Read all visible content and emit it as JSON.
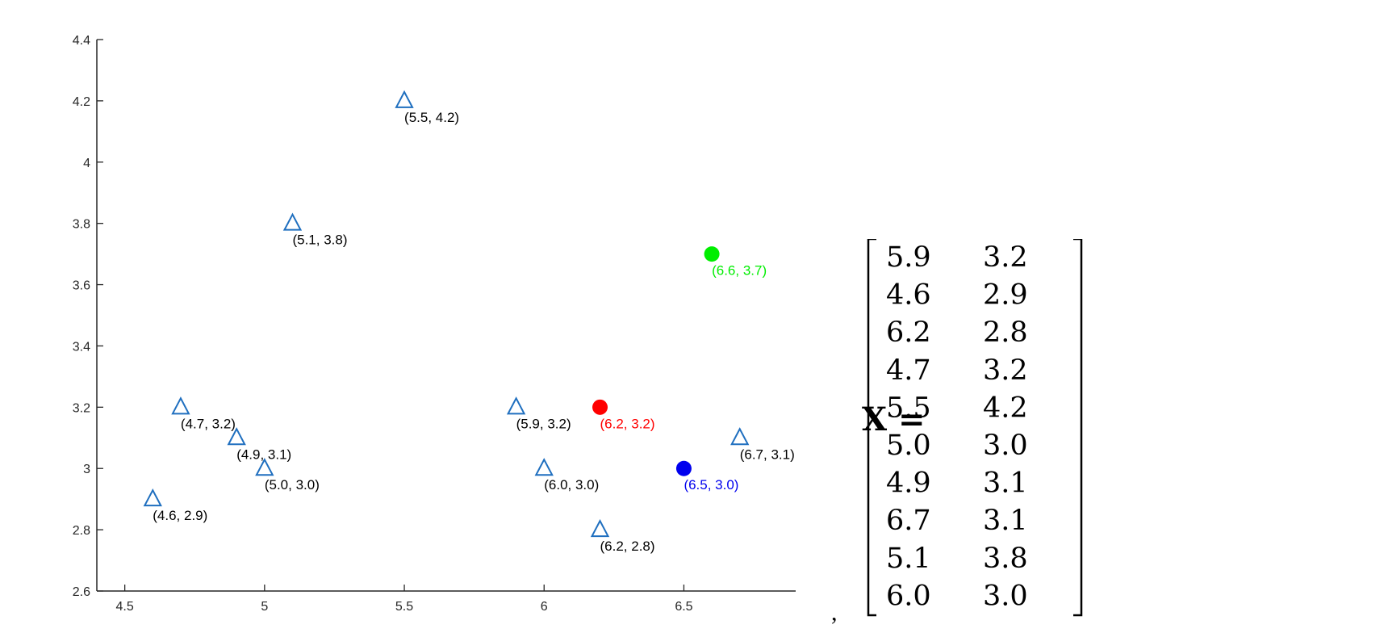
{
  "chart_data": {
    "type": "scatter",
    "xlim": [
      4.4,
      6.9
    ],
    "ylim": [
      2.6,
      4.4
    ],
    "xticks": [
      "4.5",
      "5",
      "5.5",
      "6",
      "6.5"
    ],
    "xtick_values": [
      4.5,
      5.0,
      5.5,
      6.0,
      6.5
    ],
    "yticks": [
      "2.6",
      "2.8",
      "3",
      "3.2",
      "3.4",
      "3.6",
      "3.8",
      "4",
      "4.2",
      "4.4"
    ],
    "ytick_values": [
      2.6,
      2.8,
      3.0,
      3.2,
      3.4,
      3.6,
      3.8,
      4.0,
      4.2,
      4.4
    ],
    "grid": false,
    "points": [
      {
        "x": 5.5,
        "y": 4.2,
        "label": "(5.5, 4.2)",
        "marker": "triangle",
        "color": "#1f6fbf"
      },
      {
        "x": 5.1,
        "y": 3.8,
        "label": "(5.1, 3.8)",
        "marker": "triangle",
        "color": "#1f6fbf"
      },
      {
        "x": 4.7,
        "y": 3.2,
        "label": "(4.7, 3.2)",
        "marker": "triangle",
        "color": "#1f6fbf"
      },
      {
        "x": 4.9,
        "y": 3.1,
        "label": "(4.9, 3.1)",
        "marker": "triangle",
        "color": "#1f6fbf"
      },
      {
        "x": 5.0,
        "y": 3.0,
        "label": "(5.0, 3.0)",
        "marker": "triangle",
        "color": "#1f6fbf"
      },
      {
        "x": 4.6,
        "y": 2.9,
        "label": "(4.6, 2.9)",
        "marker": "triangle",
        "color": "#1f6fbf"
      },
      {
        "x": 5.9,
        "y": 3.2,
        "label": "(5.9, 3.2)",
        "marker": "triangle",
        "color": "#1f6fbf"
      },
      {
        "x": 6.0,
        "y": 3.0,
        "label": "(6.0, 3.0)",
        "marker": "triangle",
        "color": "#1f6fbf"
      },
      {
        "x": 6.2,
        "y": 2.8,
        "label": "(6.2, 2.8)",
        "marker": "triangle",
        "color": "#1f6fbf"
      },
      {
        "x": 6.7,
        "y": 3.1,
        "label": "(6.7, 3.1)",
        "marker": "triangle",
        "color": "#1f6fbf"
      },
      {
        "x": 6.6,
        "y": 3.7,
        "label": "(6.6, 3.7)",
        "marker": "dot",
        "color": "#00ee00"
      },
      {
        "x": 6.2,
        "y": 3.2,
        "label": "(6.2, 3.2)",
        "marker": "dot",
        "color": "#ff0000"
      },
      {
        "x": 6.5,
        "y": 3.0,
        "label": "(6.5, 3.0)",
        "marker": "dot",
        "color": "#0000ee"
      }
    ]
  },
  "matrix": {
    "lhs": "X =",
    "rows": [
      [
        "5.9",
        "3.2"
      ],
      [
        "4.6",
        "2.9"
      ],
      [
        "6.2",
        "2.8"
      ],
      [
        "4.7",
        "3.2"
      ],
      [
        "5.5",
        "4.2"
      ],
      [
        "5.0",
        "3.0"
      ],
      [
        "4.9",
        "3.1"
      ],
      [
        "6.7",
        "3.1"
      ],
      [
        "5.1",
        "3.8"
      ],
      [
        "6.0",
        "3.0"
      ]
    ]
  },
  "comma": ","
}
